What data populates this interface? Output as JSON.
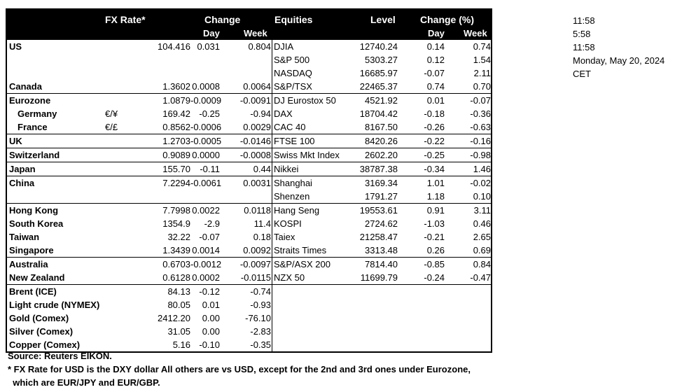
{
  "header": {
    "fx_rate": "FX Rate*",
    "change": "Change",
    "day": "Day",
    "week": "Week",
    "equities": "Equities",
    "level": "Level",
    "change_pct": "Change (%)",
    "day2": "Day",
    "week2": "Week"
  },
  "rows": [
    {
      "country": "US",
      "indent": false,
      "pair": "",
      "fx": "104.416",
      "fx_day": "0.031",
      "fx_week": "0.804",
      "eq": "DJIA",
      "level": "12740.24",
      "eq_day": "0.14",
      "eq_week": "0.74",
      "border": false
    },
    {
      "country": "",
      "indent": false,
      "pair": "",
      "fx": "",
      "fx_day": "",
      "fx_week": "",
      "eq": "S&P 500",
      "level": "5303.27",
      "eq_day": "0.12",
      "eq_week": "1.54",
      "border": false
    },
    {
      "country": "",
      "indent": false,
      "pair": "",
      "fx": "",
      "fx_day": "",
      "fx_week": "",
      "eq": "NASDAQ",
      "level": "16685.97",
      "eq_day": "-0.07",
      "eq_week": "2.11",
      "border": false
    },
    {
      "country": "Canada",
      "indent": false,
      "pair": "",
      "fx": "1.3602",
      "fx_day": "0.0008",
      "fx_week": "0.0064",
      "eq": "S&P/TSX",
      "level": "22465.37",
      "eq_day": "0.74",
      "eq_week": "0.70",
      "border": false
    },
    {
      "country": "Eurozone",
      "indent": false,
      "pair": "",
      "fx": "1.0879",
      "fx_day": "-0.0009",
      "fx_week": "-0.0091",
      "eq": "DJ Eurostox 50",
      "level": "4521.92",
      "eq_day": "0.01",
      "eq_week": "-0.07",
      "border": true
    },
    {
      "country": "Germany",
      "indent": true,
      "pair": "€/¥",
      "fx": "169.42",
      "fx_day": "-0.25",
      "fx_week": "-0.94",
      "eq": "DAX",
      "level": "18704.42",
      "eq_day": "-0.18",
      "eq_week": "-0.36",
      "border": false
    },
    {
      "country": "France",
      "indent": true,
      "pair": "€/£",
      "fx": "0.8562",
      "fx_day": "-0.0006",
      "fx_week": "0.0029",
      "eq": "CAC 40",
      "level": "8167.50",
      "eq_day": "-0.26",
      "eq_week": "-0.63",
      "border": false
    },
    {
      "country": "UK",
      "indent": false,
      "pair": "",
      "fx": "1.2703",
      "fx_day": "-0.0005",
      "fx_week": "-0.0146",
      "eq": "FTSE 100",
      "level": "8420.26",
      "eq_day": "-0.22",
      "eq_week": "-0.16",
      "border": true
    },
    {
      "country": "Switzerland",
      "indent": false,
      "pair": "",
      "fx": "0.9089",
      "fx_day": "0.0000",
      "fx_week": "-0.0008",
      "eq": "Swiss Mkt Index",
      "level": "2602.20",
      "eq_day": "-0.25",
      "eq_week": "-0.98",
      "border": true
    },
    {
      "country": "Japan",
      "indent": false,
      "pair": "",
      "fx": "155.70",
      "fx_day": "-0.11",
      "fx_week": "0.44",
      "eq": "Nikkei",
      "level": "38787.38",
      "eq_day": "-0.34",
      "eq_week": "1.46",
      "border": true
    },
    {
      "country": "China",
      "indent": false,
      "pair": "",
      "fx": "7.2294",
      "fx_day": "-0.0061",
      "fx_week": "0.0031",
      "eq": "Shanghai",
      "level": "3169.34",
      "eq_day": "1.01",
      "eq_week": "-0.02",
      "border": true
    },
    {
      "country": "",
      "indent": false,
      "pair": "",
      "fx": "",
      "fx_day": "",
      "fx_week": "",
      "eq": "Shenzen",
      "level": "1791.27",
      "eq_day": "1.18",
      "eq_week": "0.10",
      "border": false
    },
    {
      "country": "Hong Kong",
      "indent": false,
      "pair": "",
      "fx": "7.7998",
      "fx_day": "0.0022",
      "fx_week": "0.0118",
      "eq": "Hang Seng",
      "level": "19553.61",
      "eq_day": "0.91",
      "eq_week": "3.11",
      "border": true
    },
    {
      "country": "South Korea",
      "indent": false,
      "pair": "",
      "fx": "1354.9",
      "fx_day": "-2.9",
      "fx_week": "11.4",
      "eq": "KOSPI",
      "level": "2724.62",
      "eq_day": "-1.03",
      "eq_week": "0.46",
      "border": false
    },
    {
      "country": "Taiwan",
      "indent": false,
      "pair": "",
      "fx": "32.22",
      "fx_day": "-0.07",
      "fx_week": "0.18",
      "eq": "Taiex",
      "level": "21258.47",
      "eq_day": "-0.21",
      "eq_week": "2.65",
      "border": false
    },
    {
      "country": "Singapore",
      "indent": false,
      "pair": "",
      "fx": "1.3439",
      "fx_day": "0.0014",
      "fx_week": "0.0092",
      "eq": "Straits Times",
      "level": "3313.48",
      "eq_day": "0.26",
      "eq_week": "0.69",
      "border": false
    },
    {
      "country": "Australia",
      "indent": false,
      "pair": "",
      "fx": "0.6703",
      "fx_day": "-0.0012",
      "fx_week": "-0.0097",
      "eq": "S&P/ASX  200",
      "level": "7814.40",
      "eq_day": "-0.85",
      "eq_week": "0.84",
      "border": true
    },
    {
      "country": "New Zealand",
      "indent": false,
      "pair": "",
      "fx": "0.6128",
      "fx_day": "0.0002",
      "fx_week": "-0.0115",
      "eq": "NZX 50",
      "level": "11699.79",
      "eq_day": "-0.24",
      "eq_week": "-0.47",
      "border": false
    },
    {
      "country": "Brent (ICE)",
      "indent": false,
      "pair": "",
      "fx": "84.13",
      "fx_day": "-0.12",
      "fx_week": "-0.74",
      "eq": "",
      "level": "",
      "eq_day": "",
      "eq_week": "",
      "border": true
    },
    {
      "country": "Light crude (NYMEX)",
      "indent": false,
      "pair": "",
      "fx": "80.05",
      "fx_day": "0.01",
      "fx_week": "-0.93",
      "eq": "",
      "level": "",
      "eq_day": "",
      "eq_week": "",
      "border": false
    },
    {
      "country": "Gold (Comex)",
      "indent": false,
      "pair": "",
      "fx": "2412.20",
      "fx_day": "0.00",
      "fx_week": "-76.10",
      "eq": "",
      "level": "",
      "eq_day": "",
      "eq_week": "",
      "border": false
    },
    {
      "country": "Silver (Comex)",
      "indent": false,
      "pair": "",
      "fx": "31.05",
      "fx_day": "0.00",
      "fx_week": "-2.83",
      "eq": "",
      "level": "",
      "eq_day": "",
      "eq_week": "",
      "border": false
    },
    {
      "country": "Copper (Comex)",
      "indent": false,
      "pair": "",
      "fx": "5.16",
      "fx_day": "-0.10",
      "fx_week": "-0.35",
      "eq": "",
      "level": "",
      "eq_day": "",
      "eq_week": "",
      "border": false
    }
  ],
  "clock": {
    "line1": "11:58",
    "line2": "5:58",
    "line3": "11:58",
    "date": "Monday, May 20, 2024",
    "tz": "CET"
  },
  "notes": {
    "source": "Source:  Reuters EIKON.",
    "footnote1": "* FX Rate for USD is the DXY dollar  All others are vs USD, except for the 2nd and 3rd ones under Eurozone,",
    "footnote2": "  which are EUR/JPY and EUR/GBP."
  }
}
